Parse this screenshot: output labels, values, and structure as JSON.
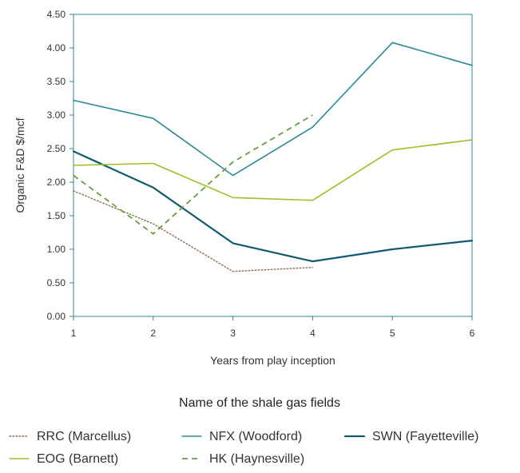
{
  "chart_data": {
    "type": "line",
    "xlabel": "Years from play inception",
    "ylabel": "Organic F&D $/mcf",
    "x": [
      1,
      2,
      3,
      4,
      5,
      6
    ],
    "xlim": [
      1,
      6
    ],
    "ylim": [
      0,
      4.5
    ],
    "y_ticks": [
      "0.00",
      "0.50",
      "1.00",
      "1.50",
      "2.00",
      "2.50",
      "3.00",
      "3.50",
      "4.00",
      "4.50"
    ],
    "x_ticks": [
      "1",
      "2",
      "3",
      "4",
      "5",
      "6"
    ],
    "grid": false,
    "legend_title": "Name of the shale gas fields",
    "legend_position": "bottom",
    "series": [
      {
        "name": "RRC (Marcellus)",
        "x": [
          1,
          2,
          3,
          4
        ],
        "values": [
          1.87,
          1.38,
          0.67,
          0.73
        ],
        "color": "#8b6b56",
        "style": "dotted"
      },
      {
        "name": "NFX (Woodford)",
        "x": [
          1,
          2,
          3,
          4,
          5,
          6
        ],
        "values": [
          3.22,
          2.95,
          2.1,
          2.82,
          4.08,
          3.74
        ],
        "color": "#2b8a95",
        "style": "solid"
      },
      {
        "name": "SWN (Fayetteville)",
        "x": [
          1,
          2,
          3,
          4,
          5,
          6
        ],
        "values": [
          2.46,
          1.92,
          1.09,
          0.82,
          1.0,
          1.13
        ],
        "color": "#0f5b70",
        "style": "solid-thick"
      },
      {
        "name": "EOG (Barnett)",
        "x": [
          1,
          2,
          3,
          4,
          5,
          6
        ],
        "values": [
          2.25,
          2.28,
          1.77,
          1.73,
          2.48,
          2.63
        ],
        "color": "#9dbf2a",
        "style": "solid"
      },
      {
        "name": "HK (Haynesville)",
        "x": [
          1,
          2,
          3,
          4
        ],
        "values": [
          2.1,
          1.23,
          2.3,
          3.0
        ],
        "color": "#6c9c3c",
        "style": "dashed"
      }
    ]
  }
}
